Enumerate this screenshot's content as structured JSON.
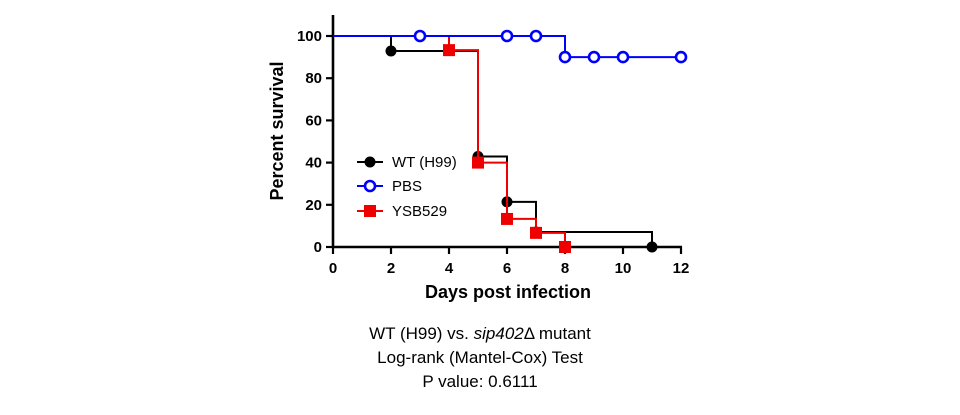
{
  "chart_data": {
    "type": "line",
    "subtype": "kaplan-meier-step",
    "xlabel": "Days post infection",
    "ylabel": "Percent survival",
    "xlim": [
      0,
      12
    ],
    "ylim": [
      0,
      100
    ],
    "xticks": [
      0,
      2,
      4,
      6,
      8,
      10,
      12
    ],
    "yticks": [
      0,
      20,
      40,
      60,
      80,
      100
    ],
    "grid": false,
    "legend_position": "left-middle",
    "series": [
      {
        "name": "WT (H99)",
        "color": "#000000",
        "marker": "filled-circle",
        "steps": [
          [
            0,
            100
          ],
          [
            2,
            92.9
          ],
          [
            5,
            42.9
          ],
          [
            6,
            21.4
          ],
          [
            7,
            7.1
          ],
          [
            11,
            0
          ]
        ],
        "markers": [
          [
            2,
            92.9
          ],
          [
            5,
            42.9
          ],
          [
            6,
            21.4
          ],
          [
            7,
            7.1
          ],
          [
            11,
            0
          ]
        ]
      },
      {
        "name": "PBS",
        "color": "#0000ff",
        "marker": "open-circle",
        "steps": [
          [
            0,
            100
          ],
          [
            8,
            90
          ],
          [
            12,
            90
          ]
        ],
        "markers": [
          [
            3,
            100
          ],
          [
            6,
            100
          ],
          [
            7,
            100
          ],
          [
            8,
            90
          ],
          [
            9,
            90
          ],
          [
            10,
            90
          ],
          [
            12,
            90
          ]
        ]
      },
      {
        "name": "YSB529",
        "color": "#ee0000",
        "marker": "filled-square",
        "steps": [
          [
            0,
            100
          ],
          [
            4,
            93.3
          ],
          [
            5,
            40
          ],
          [
            6,
            13.3
          ],
          [
            7,
            6.7
          ],
          [
            8,
            0
          ]
        ],
        "markers": [
          [
            4,
            93.3
          ],
          [
            5,
            40
          ],
          [
            6,
            13.3
          ],
          [
            7,
            6.7
          ],
          [
            8,
            0
          ]
        ]
      }
    ]
  },
  "caption": {
    "line1_prefix": "WT (H99) vs. ",
    "line1_italic": "sip402",
    "line1_suffix": "Δ mutant",
    "line2": "Log-rank (Mantel-Cox) Test",
    "line3": "P value: 0.6111"
  }
}
